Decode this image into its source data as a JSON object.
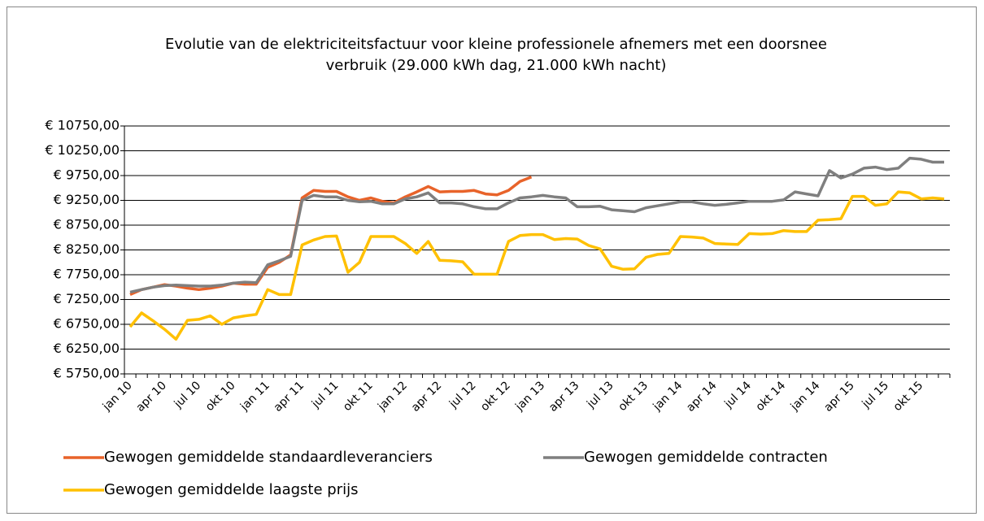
{
  "chart_data": {
    "type": "line",
    "title": "Evolutie van de elektriciteitsfactuur voor kleine professionele afnemers met een doorsnee verbruik (29.000  kWh dag, 21.000  kWh nacht)",
    "categories": [
      "jan 10",
      null,
      null,
      "apr 10",
      null,
      null,
      "jul 10",
      null,
      null,
      "okt 10",
      null,
      null,
      "jan 11",
      null,
      null,
      "apr 11",
      null,
      null,
      "jul 11",
      null,
      null,
      "okt 11",
      null,
      null,
      "jan 12",
      null,
      null,
      "apr 12",
      null,
      null,
      "jul 12",
      null,
      null,
      "okt 12",
      null,
      null,
      "jan 13",
      null,
      null,
      "apr 13",
      null,
      null,
      "jul 13",
      null,
      null,
      "okt 13",
      null,
      null,
      "jan 14",
      null,
      null,
      "apr 14",
      null,
      null,
      "jul 14",
      null,
      null,
      "okt 14",
      null,
      null,
      "jan 14",
      null,
      null,
      "apr 15",
      null,
      null,
      "jul 15",
      null,
      null,
      "okt 15",
      null,
      null
    ],
    "series": [
      {
        "name": "Gewogen gemiddelde standaardleveranciers",
        "color": "#e8632a",
        "values": [
          7350,
          7450,
          7500,
          7550,
          7520,
          7480,
          7450,
          7480,
          7520,
          7580,
          7560,
          7560,
          7900,
          8000,
          8150,
          9300,
          9450,
          9430,
          9430,
          9320,
          9250,
          9300,
          9230,
          9200,
          9320,
          9420,
          9530,
          9420,
          9430,
          9430,
          9450,
          9380,
          9360,
          9450,
          9630,
          9720,
          null,
          null,
          null,
          null,
          null,
          null,
          null,
          null,
          null,
          null,
          null,
          null,
          null,
          null,
          null,
          null,
          null,
          null,
          null,
          null,
          null,
          null,
          null,
          null,
          null,
          null,
          null,
          null,
          null,
          null,
          null,
          null,
          null,
          null,
          null,
          null
        ]
      },
      {
        "name": "Gewogen gemiddelde contracten",
        "color": "#7f7f7f",
        "values": [
          7400,
          7450,
          7500,
          7530,
          7540,
          7530,
          7520,
          7520,
          7540,
          7580,
          7600,
          7590,
          7950,
          8030,
          8120,
          9250,
          9350,
          9320,
          9320,
          9250,
          9220,
          9230,
          9180,
          9180,
          9280,
          9320,
          9400,
          9200,
          9200,
          9180,
          9120,
          9080,
          9080,
          9200,
          9300,
          9320,
          9350,
          9320,
          9300,
          9120,
          9120,
          9130,
          9060,
          9040,
          9020,
          9100,
          9140,
          9180,
          9220,
          9220,
          9180,
          9150,
          9170,
          9200,
          9230,
          9230,
          9230,
          9260,
          9420,
          9380,
          9340,
          9850,
          9700,
          9780,
          9900,
          9920,
          9870,
          9900,
          10100,
          10080,
          10020,
          10020
        ]
      },
      {
        "name": "Gewogen gemiddelde laagste prijs",
        "color": "#ffc000",
        "values": [
          6700,
          6980,
          6820,
          6650,
          6450,
          6830,
          6850,
          6920,
          6750,
          6880,
          6920,
          6950,
          7450,
          7350,
          7350,
          8350,
          8450,
          8520,
          8530,
          7800,
          8000,
          8520,
          8520,
          8520,
          8380,
          8180,
          8420,
          8040,
          8030,
          8010,
          7760,
          7760,
          7760,
          8420,
          8540,
          8560,
          8560,
          8460,
          8480,
          8470,
          8340,
          8270,
          7920,
          7860,
          7870,
          8100,
          8160,
          8180,
          8520,
          8510,
          8490,
          8380,
          8370,
          8360,
          8580,
          8570,
          8580,
          8640,
          8620,
          8620,
          8850,
          8860,
          8880,
          9330,
          9330,
          9150,
          9180,
          9420,
          9400,
          9280,
          9300,
          9280
        ]
      }
    ],
    "ylim": [
      5750,
      10750
    ],
    "yticks": [
      {
        "value": 5750,
        "label": "€ 5750,00"
      },
      {
        "value": 6250,
        "label": "€ 6250,00"
      },
      {
        "value": 6750,
        "label": "€ 6750,00"
      },
      {
        "value": 7250,
        "label": "€ 7250,00"
      },
      {
        "value": 7750,
        "label": "€ 7750,00"
      },
      {
        "value": 8250,
        "label": "€ 8250,00"
      },
      {
        "value": 8750,
        "label": "€ 8750,00"
      },
      {
        "value": 9250,
        "label": "€ 9250,00"
      },
      {
        "value": 9750,
        "label": "€ 9750,00"
      },
      {
        "value": 10250,
        "label": "€ 10250,00"
      },
      {
        "value": 10750,
        "label": "€ 10750,00"
      }
    ],
    "grid": true,
    "legend": "bottom"
  }
}
